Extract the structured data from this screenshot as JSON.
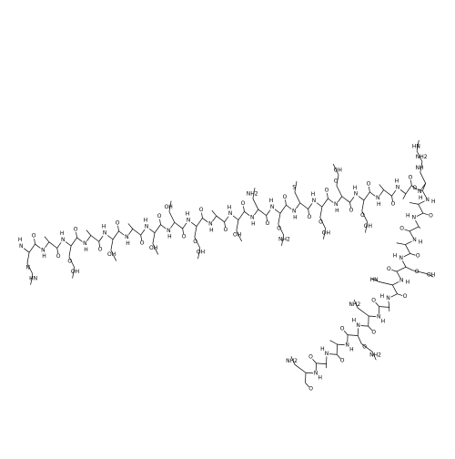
{
  "molecule": {
    "residues": [
      {
        "n": "N",
        "h": "H",
        "o": "O",
        "side": [
          "N",
          "HN"
        ]
      },
      {
        "n": "N",
        "h": "H",
        "o": "O",
        "side": []
      },
      {
        "n": "N",
        "h": "H",
        "o": "O",
        "side": [
          "O",
          "OH"
        ]
      },
      {
        "n": "N",
        "h": "H",
        "o": "O",
        "side": []
      },
      {
        "n": "N",
        "h": "H",
        "o": "O",
        "side": [
          "OH"
        ]
      },
      {
        "n": "N",
        "h": "H",
        "o": "O",
        "side": []
      },
      {
        "n": "N",
        "h": "H",
        "o": "O",
        "side": [
          "OH"
        ]
      },
      {
        "n": "N",
        "h": "H",
        "o": "O",
        "side": [
          "OH"
        ]
      },
      {
        "n": "N",
        "h": "H",
        "o": "O",
        "side": [
          "O",
          "OH"
        ]
      },
      {
        "n": "N",
        "h": "H",
        "o": "O",
        "side": []
      },
      {
        "n": "N",
        "h": "H",
        "o": "O",
        "side": [
          "OH"
        ]
      },
      {
        "n": "N",
        "h": "H",
        "o": "O",
        "side": [
          "NH2"
        ]
      },
      {
        "n": "N",
        "h": "H",
        "o": "O",
        "side": [
          "O",
          "NH2"
        ]
      },
      {
        "n": "N",
        "h": "H",
        "o": "O",
        "side": [
          "S"
        ]
      },
      {
        "n": "N",
        "h": "H",
        "o": "O",
        "side": [
          "O",
          "OH"
        ]
      },
      {
        "n": "N",
        "h": "H",
        "o": "O",
        "side": [
          "O",
          "OH"
        ]
      },
      {
        "n": "N",
        "h": "H",
        "o": "O",
        "side": [
          "O",
          "OH"
        ]
      },
      {
        "n": "N",
        "h": "H",
        "o": "O",
        "side": []
      },
      {
        "n": "N",
        "h": "H",
        "o": "O",
        "side": []
      },
      {
        "n": "N",
        "h": "H",
        "o": "O",
        "side": [
          "NH",
          "NH2",
          "HN"
        ]
      },
      {
        "n": "N",
        "h": "H",
        "o": "O",
        "side": []
      },
      {
        "n": "N",
        "h": "H",
        "o": "O",
        "side": []
      },
      {
        "n": "N",
        "h": "H",
        "o": "O",
        "side": []
      },
      {
        "n": "N",
        "h": "H",
        "o": "O",
        "side": [
          "O",
          "OH"
        ]
      },
      {
        "n": "N",
        "h": "H",
        "o": "O",
        "side": [
          "HN"
        ]
      },
      {
        "n": "N",
        "h": "H",
        "o": "O",
        "side": []
      },
      {
        "n": "N",
        "h": "H",
        "o": "O",
        "side": [
          "NH2"
        ]
      },
      {
        "n": "N",
        "h": "H",
        "o": "O",
        "side": [
          "O",
          "NH2"
        ]
      },
      {
        "n": "N",
        "h": "H",
        "o": "O",
        "side": []
      },
      {
        "n": "N",
        "h": "H",
        "o": "O",
        "side": []
      },
      {
        "n": "N",
        "h": "H",
        "o": "O",
        "side": [
          "NH2"
        ]
      }
    ]
  }
}
